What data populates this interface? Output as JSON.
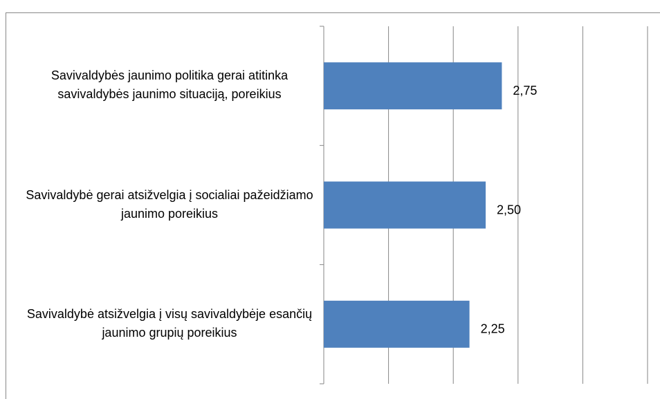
{
  "chart_data": {
    "type": "barh",
    "categories": [
      "Savivaldybės jaunimo politika gerai atitinka savivaldybės jaunimo situaciją, poreikius",
      "Savivaldybė gerai atsižvelgia į socialiai pažeidžiamo jaunimo poreikius",
      "Savivaldybė atsižvelgia į visų savivaldybėje esančių jaunimo grupių poreikius"
    ],
    "values": [
      2.75,
      2.5,
      2.25
    ],
    "value_labels": [
      "2,75",
      "2,50",
      "2,25"
    ],
    "color": "#4f81bd",
    "xlim": [
      0,
      5
    ],
    "xticks": [
      0,
      1,
      2,
      3,
      4,
      5
    ],
    "grid": true
  }
}
